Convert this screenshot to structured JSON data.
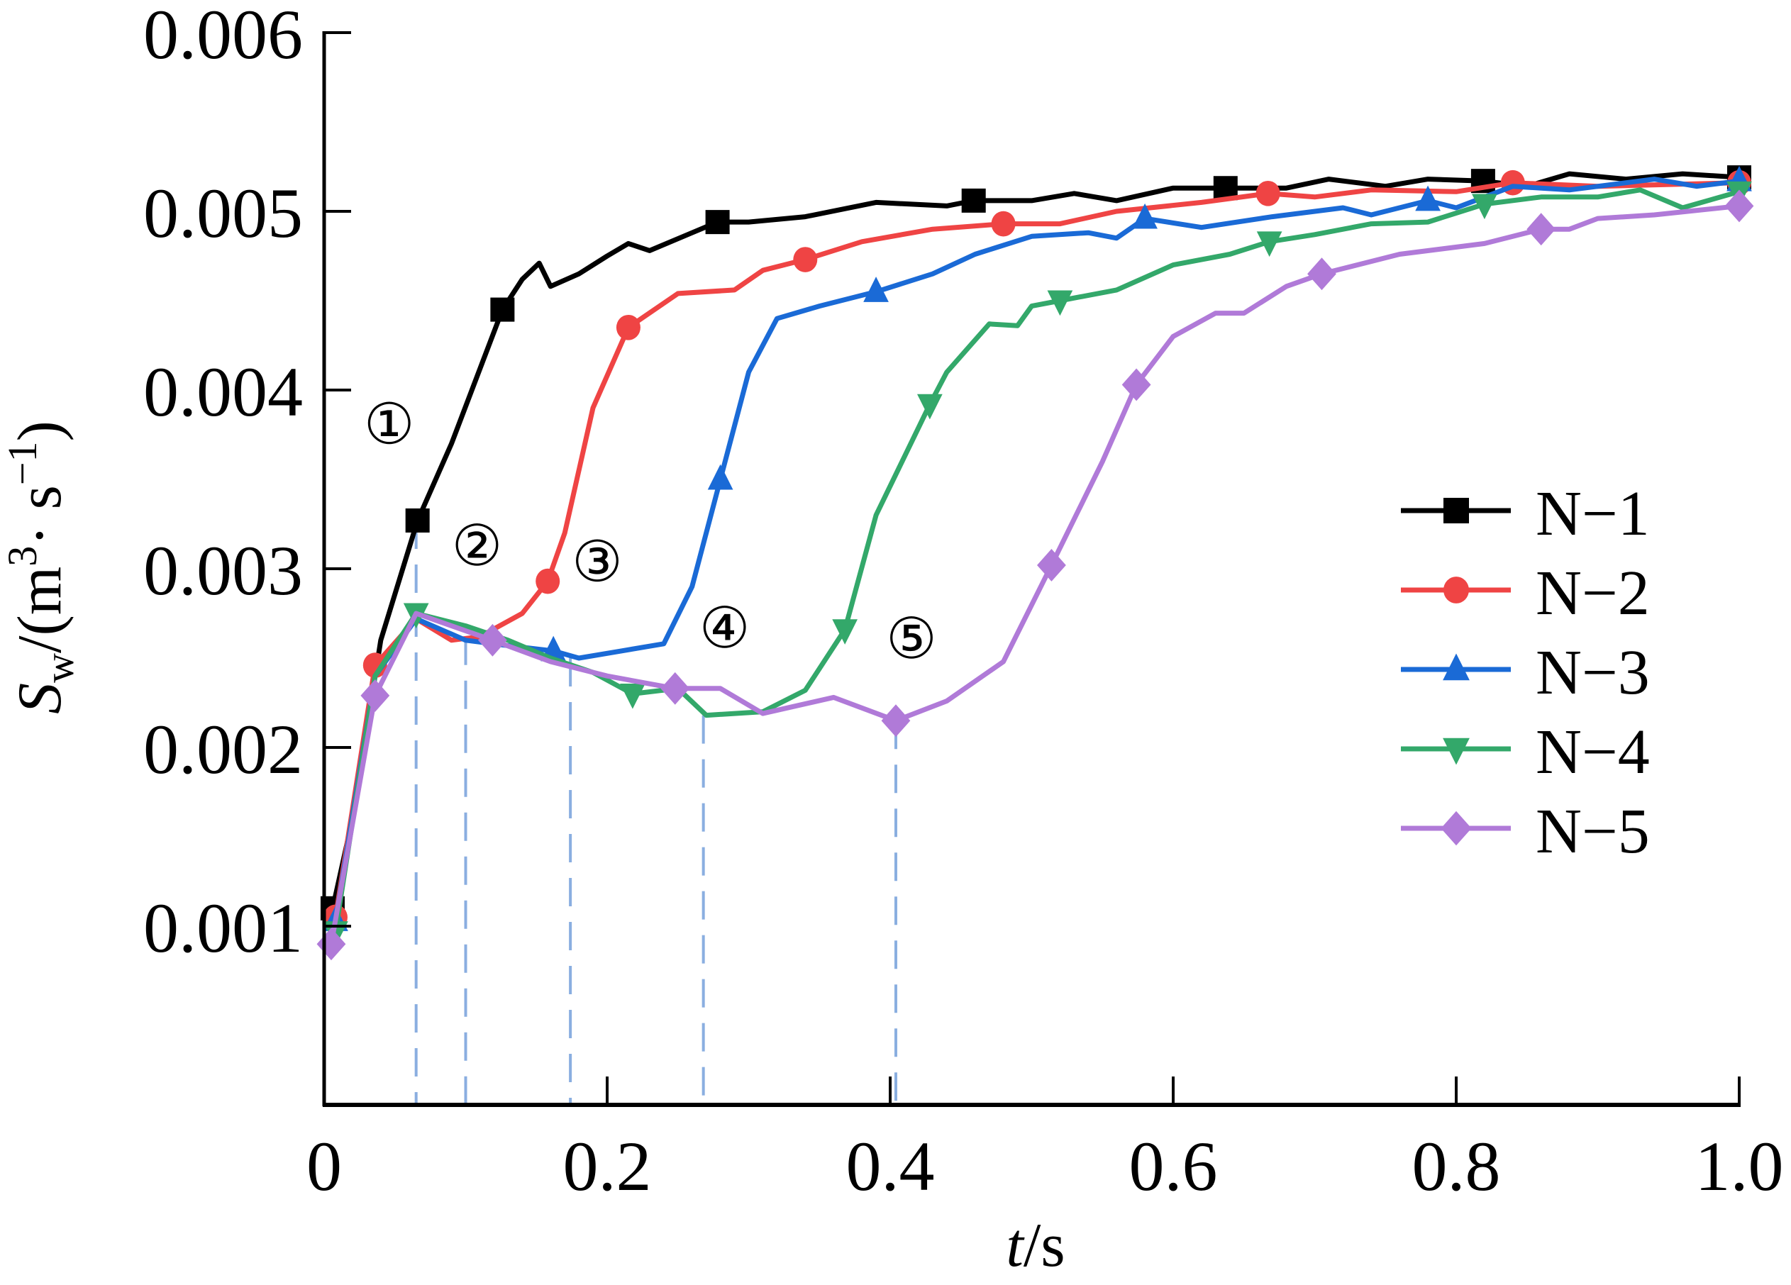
{
  "chart_data": {
    "type": "line",
    "title": "",
    "xlabel": "t/s",
    "xlabel_parts": {
      "var": "t",
      "unit": "/s"
    },
    "ylabel": "S_w/(m^3·s^-1)",
    "ylabel_parts": {
      "var": "S",
      "sub": "w",
      "unit_open": "/(m",
      "sup1": "3",
      "mid": "· s",
      "sup2": "−1",
      "close": ")"
    },
    "xlim": [
      0,
      1.0
    ],
    "ylim": [
      0,
      0.006
    ],
    "xticks": [
      0,
      0.2,
      0.4,
      0.6,
      0.8,
      1.0
    ],
    "xtick_labels": [
      "0",
      "0.2",
      "0.4",
      "0.6",
      "0.8",
      "1.0"
    ],
    "yticks": [
      0.001,
      0.002,
      0.003,
      0.004,
      0.005,
      0.006
    ],
    "ytick_labels": [
      "0.001",
      "0.002",
      "0.003",
      "0.004",
      "0.005",
      "0.006"
    ],
    "grid": false,
    "legend_position": "right-middle",
    "series": [
      {
        "name": "N-1",
        "color": "#000000",
        "marker": "square",
        "x": [
          0.006,
          0.02,
          0.03,
          0.04,
          0.066,
          0.09,
          0.126,
          0.14,
          0.152,
          0.16,
          0.18,
          0.2,
          0.215,
          0.23,
          0.26,
          0.278,
          0.3,
          0.34,
          0.39,
          0.44,
          0.459,
          0.5,
          0.53,
          0.56,
          0.6,
          0.637,
          0.68,
          0.71,
          0.75,
          0.78,
          0.819,
          0.85,
          0.88,
          0.92,
          0.96,
          1.0
        ],
        "y": [
          0.0011,
          0.0016,
          0.0021,
          0.0026,
          0.00327,
          0.0037,
          0.00445,
          0.00462,
          0.00471,
          0.00458,
          0.00465,
          0.00475,
          0.00482,
          0.00478,
          0.00488,
          0.00494,
          0.00494,
          0.00497,
          0.00505,
          0.00503,
          0.00506,
          0.00506,
          0.0051,
          0.00506,
          0.00513,
          0.00513,
          0.00513,
          0.00518,
          0.00514,
          0.00518,
          0.00517,
          0.00514,
          0.00521,
          0.00518,
          0.00521,
          0.00519
        ],
        "markers_x": [
          0.006,
          0.066,
          0.126,
          0.278,
          0.459,
          0.637,
          0.819,
          1.0
        ],
        "markers_y": [
          0.0011,
          0.00327,
          0.00445,
          0.00494,
          0.00506,
          0.00513,
          0.00517,
          0.00519
        ]
      },
      {
        "name": "N-2",
        "color": "#ef4444",
        "marker": "circle",
        "x": [
          0.008,
          0.036,
          0.065,
          0.09,
          0.11,
          0.14,
          0.158,
          0.17,
          0.19,
          0.215,
          0.25,
          0.29,
          0.31,
          0.34,
          0.38,
          0.43,
          0.48,
          0.52,
          0.56,
          0.62,
          0.667,
          0.7,
          0.74,
          0.8,
          0.84,
          0.9,
          1.0
        ],
        "y": [
          0.00105,
          0.00246,
          0.00272,
          0.0026,
          0.00262,
          0.00275,
          0.00293,
          0.0032,
          0.0039,
          0.00435,
          0.00454,
          0.00456,
          0.00467,
          0.00473,
          0.00483,
          0.0049,
          0.00493,
          0.00493,
          0.005,
          0.00505,
          0.0051,
          0.00508,
          0.00512,
          0.00511,
          0.00516,
          0.00514,
          0.00516
        ],
        "markers_x": [
          0.008,
          0.036,
          0.158,
          0.215,
          0.34,
          0.48,
          0.667,
          0.84,
          1.0
        ],
        "markers_y": [
          0.00105,
          0.00246,
          0.00293,
          0.00435,
          0.00473,
          0.00493,
          0.0051,
          0.00516,
          0.00516
        ]
      },
      {
        "name": "N-3",
        "color": "#1a6ad6",
        "marker": "triangle-up",
        "x": [
          0.008,
          0.036,
          0.065,
          0.1,
          0.13,
          0.162,
          0.18,
          0.21,
          0.24,
          0.26,
          0.28,
          0.3,
          0.32,
          0.35,
          0.39,
          0.43,
          0.46,
          0.5,
          0.54,
          0.56,
          0.58,
          0.62,
          0.67,
          0.72,
          0.74,
          0.78,
          0.8,
          0.84,
          0.88,
          0.94,
          0.97,
          1.0
        ],
        "y": [
          0.00103,
          0.0024,
          0.00272,
          0.0026,
          0.00257,
          0.00254,
          0.0025,
          0.00254,
          0.00258,
          0.0029,
          0.0035,
          0.0041,
          0.0044,
          0.00447,
          0.00455,
          0.00465,
          0.00476,
          0.00486,
          0.00488,
          0.00485,
          0.00496,
          0.00491,
          0.00497,
          0.00502,
          0.00498,
          0.00506,
          0.00502,
          0.00514,
          0.00512,
          0.00518,
          0.00514,
          0.00517
        ],
        "markers_x": [
          0.008,
          0.162,
          0.28,
          0.39,
          0.58,
          0.78,
          1.0
        ],
        "markers_y": [
          0.00103,
          0.00254,
          0.0035,
          0.00455,
          0.00496,
          0.00506,
          0.00517
        ]
      },
      {
        "name": "N-4",
        "color": "#33a86a",
        "marker": "triangle-down",
        "x": [
          0.008,
          0.036,
          0.065,
          0.1,
          0.13,
          0.16,
          0.19,
          0.218,
          0.25,
          0.27,
          0.31,
          0.34,
          0.368,
          0.39,
          0.428,
          0.44,
          0.47,
          0.49,
          0.5,
          0.52,
          0.56,
          0.6,
          0.64,
          0.668,
          0.7,
          0.74,
          0.78,
          0.82,
          0.86,
          0.9,
          0.93,
          0.96,
          1.0
        ],
        "y": [
          0.00097,
          0.0024,
          0.00275,
          0.00268,
          0.0026,
          0.0025,
          0.00242,
          0.0023,
          0.00233,
          0.00218,
          0.0022,
          0.00232,
          0.00266,
          0.0033,
          0.00392,
          0.0041,
          0.00437,
          0.00436,
          0.00447,
          0.0045,
          0.00456,
          0.0047,
          0.00476,
          0.00483,
          0.00487,
          0.00493,
          0.00494,
          0.00504,
          0.00508,
          0.00508,
          0.00512,
          0.00502,
          0.00511
        ],
        "markers_x": [
          0.008,
          0.065,
          0.218,
          0.368,
          0.428,
          0.52,
          0.668,
          0.82,
          1.0
        ],
        "markers_y": [
          0.00097,
          0.00275,
          0.0023,
          0.00266,
          0.00392,
          0.0045,
          0.00483,
          0.00504,
          0.00511
        ]
      },
      {
        "name": "N-5",
        "color": "#b07ad8",
        "marker": "diamond",
        "x": [
          0.005,
          0.036,
          0.065,
          0.119,
          0.16,
          0.2,
          0.248,
          0.28,
          0.31,
          0.36,
          0.404,
          0.44,
          0.48,
          0.514,
          0.55,
          0.574,
          0.6,
          0.63,
          0.65,
          0.68,
          0.705,
          0.76,
          0.82,
          0.86,
          0.88,
          0.9,
          0.94,
          1.0
        ],
        "y": [
          0.0009,
          0.00229,
          0.00275,
          0.0026,
          0.00248,
          0.0024,
          0.00233,
          0.00233,
          0.00219,
          0.00228,
          0.00215,
          0.00226,
          0.00248,
          0.00302,
          0.0036,
          0.00403,
          0.0043,
          0.00443,
          0.00443,
          0.00458,
          0.00465,
          0.00476,
          0.00482,
          0.0049,
          0.0049,
          0.00496,
          0.00498,
          0.00503
        ],
        "markers_x": [
          0.005,
          0.036,
          0.119,
          0.248,
          0.404,
          0.514,
          0.574,
          0.705,
          0.86,
          1.0
        ],
        "markers_y": [
          0.0009,
          0.00229,
          0.0026,
          0.00233,
          0.00215,
          0.00302,
          0.00403,
          0.00465,
          0.0049,
          0.00503
        ]
      }
    ],
    "reference_lines": {
      "color": "#8aaee0",
      "style": "dashed",
      "lines": [
        {
          "x": 0.065,
          "y_top": 0.00327
        },
        {
          "x": 0.1,
          "y_top": 0.00262
        },
        {
          "x": 0.174,
          "y_top": 0.0025
        },
        {
          "x": 0.268,
          "y_top": 0.00218
        },
        {
          "x": 0.404,
          "y_top": 0.00215
        }
      ]
    },
    "annotations": [
      {
        "text": "①",
        "x": 0.046,
        "y": 0.0037
      },
      {
        "text": "②",
        "x": 0.108,
        "y": 0.00302
      },
      {
        "text": "③",
        "x": 0.193,
        "y": 0.00293
      },
      {
        "text": "④",
        "x": 0.283,
        "y": 0.00256
      },
      {
        "text": "⑤",
        "x": 0.415,
        "y": 0.0025
      }
    ]
  }
}
